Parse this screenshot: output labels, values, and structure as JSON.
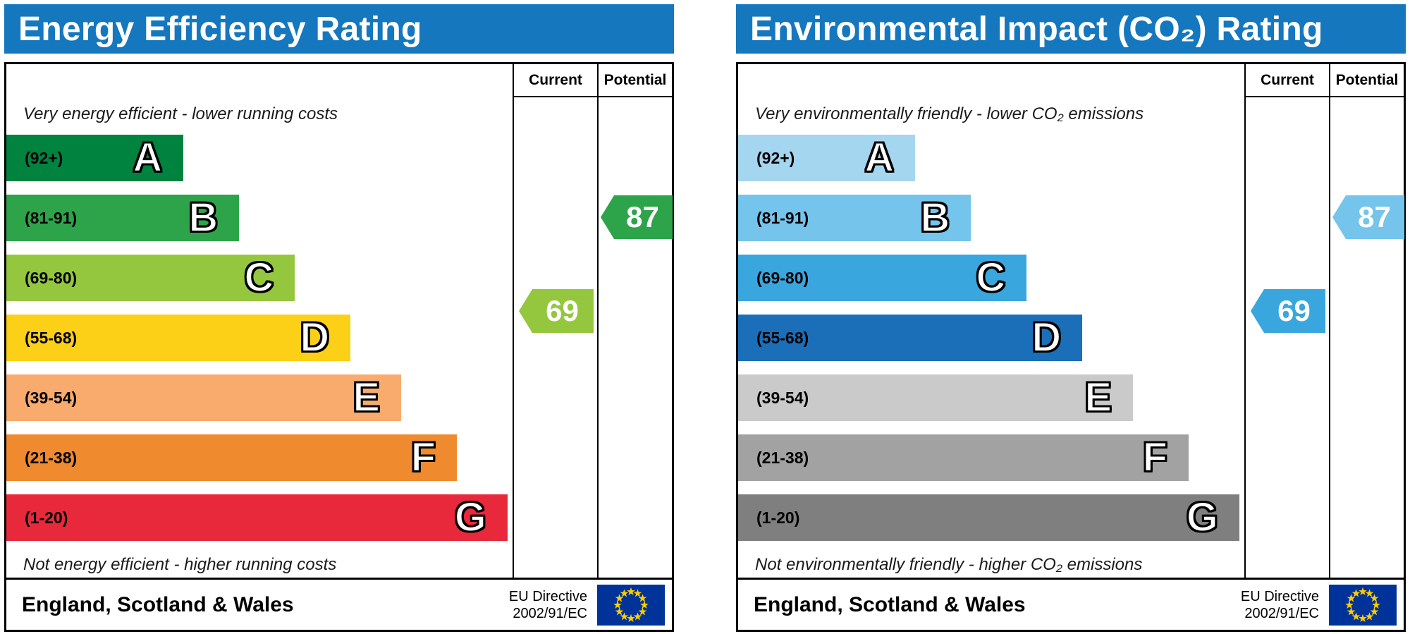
{
  "eu_flag": {
    "background": "#003399",
    "star": "#ffcc00"
  },
  "panels": [
    {
      "title": "Energy Efficiency Rating",
      "header_color": "#1577be",
      "columns": {
        "current": "Current",
        "potential": "Potential"
      },
      "top_note": "Very energy efficient - lower running costs",
      "bottom_note": "Not energy efficient - higher running costs",
      "bands": [
        {
          "range": "(92+)",
          "letter": "A",
          "color": "#00833e"
        },
        {
          "range": "(81-91)",
          "letter": "B",
          "color": "#2da44a"
        },
        {
          "range": "(69-80)",
          "letter": "C",
          "color": "#95c73e"
        },
        {
          "range": "(55-68)",
          "letter": "D",
          "color": "#fcd016"
        },
        {
          "range": "(39-54)",
          "letter": "E",
          "color": "#f8ab6d"
        },
        {
          "range": "(21-38)",
          "letter": "F",
          "color": "#ef8a2f"
        },
        {
          "range": "(1-20)",
          "letter": "G",
          "color": "#e8283b"
        }
      ],
      "current": {
        "value": "69",
        "color": "#95c73e"
      },
      "potential": {
        "value": "87",
        "color": "#2da44a"
      },
      "footer": {
        "region": "England, Scotland & Wales",
        "directive_line1": "EU Directive",
        "directive_line2": "2002/91/EC"
      }
    },
    {
      "title": "Environmental Impact (CO₂) Rating",
      "header_color": "#1577be",
      "columns": {
        "current": "Current",
        "potential": "Potential"
      },
      "top_note": "Very environmentally friendly - lower CO₂ emissions",
      "bottom_note": "Not environmentally friendly - higher CO₂ emissions",
      "bands": [
        {
          "range": "(92+)",
          "letter": "A",
          "color": "#a5d6f0"
        },
        {
          "range": "(81-91)",
          "letter": "B",
          "color": "#74c4ec"
        },
        {
          "range": "(69-80)",
          "letter": "C",
          "color": "#3aa6de"
        },
        {
          "range": "(55-68)",
          "letter": "D",
          "color": "#1b6fb9"
        },
        {
          "range": "(39-54)",
          "letter": "E",
          "color": "#cacaca"
        },
        {
          "range": "(21-38)",
          "letter": "F",
          "color": "#a2a2a2"
        },
        {
          "range": "(1-20)",
          "letter": "G",
          "color": "#7f7f7f"
        }
      ],
      "current": {
        "value": "69",
        "color": "#3aa6de"
      },
      "potential": {
        "value": "87",
        "color": "#74c4ec"
      },
      "footer": {
        "region": "England, Scotland & Wales",
        "directive_line1": "EU Directive",
        "directive_line2": "2002/91/EC"
      }
    }
  ],
  "chart_data": [
    {
      "type": "bar",
      "title": "Energy Efficiency Rating",
      "categories": [
        "A (92+)",
        "B (81-91)",
        "C (69-80)",
        "D (55-68)",
        "E (39-54)",
        "F (21-38)",
        "G (1-20)"
      ],
      "series": [
        {
          "name": "Current",
          "value": 69,
          "band": "C"
        },
        {
          "name": "Potential",
          "value": 87,
          "band": "B"
        }
      ],
      "scale": [
        1,
        100
      ],
      "top_annotation": "Very energy efficient - lower running costs",
      "bottom_annotation": "Not energy efficient - higher running costs",
      "region": "England, Scotland & Wales",
      "directive": "EU Directive 2002/91/EC"
    },
    {
      "type": "bar",
      "title": "Environmental Impact (CO₂) Rating",
      "categories": [
        "A (92+)",
        "B (81-91)",
        "C (69-80)",
        "D (55-68)",
        "E (39-54)",
        "F (21-38)",
        "G (1-20)"
      ],
      "series": [
        {
          "name": "Current",
          "value": 69,
          "band": "C"
        },
        {
          "name": "Potential",
          "value": 87,
          "band": "B"
        }
      ],
      "scale": [
        1,
        100
      ],
      "top_annotation": "Very environmentally friendly - lower CO₂ emissions",
      "bottom_annotation": "Not environmentally friendly - higher CO₂ emissions",
      "region": "England, Scotland & Wales",
      "directive": "EU Directive 2002/91/EC"
    }
  ]
}
